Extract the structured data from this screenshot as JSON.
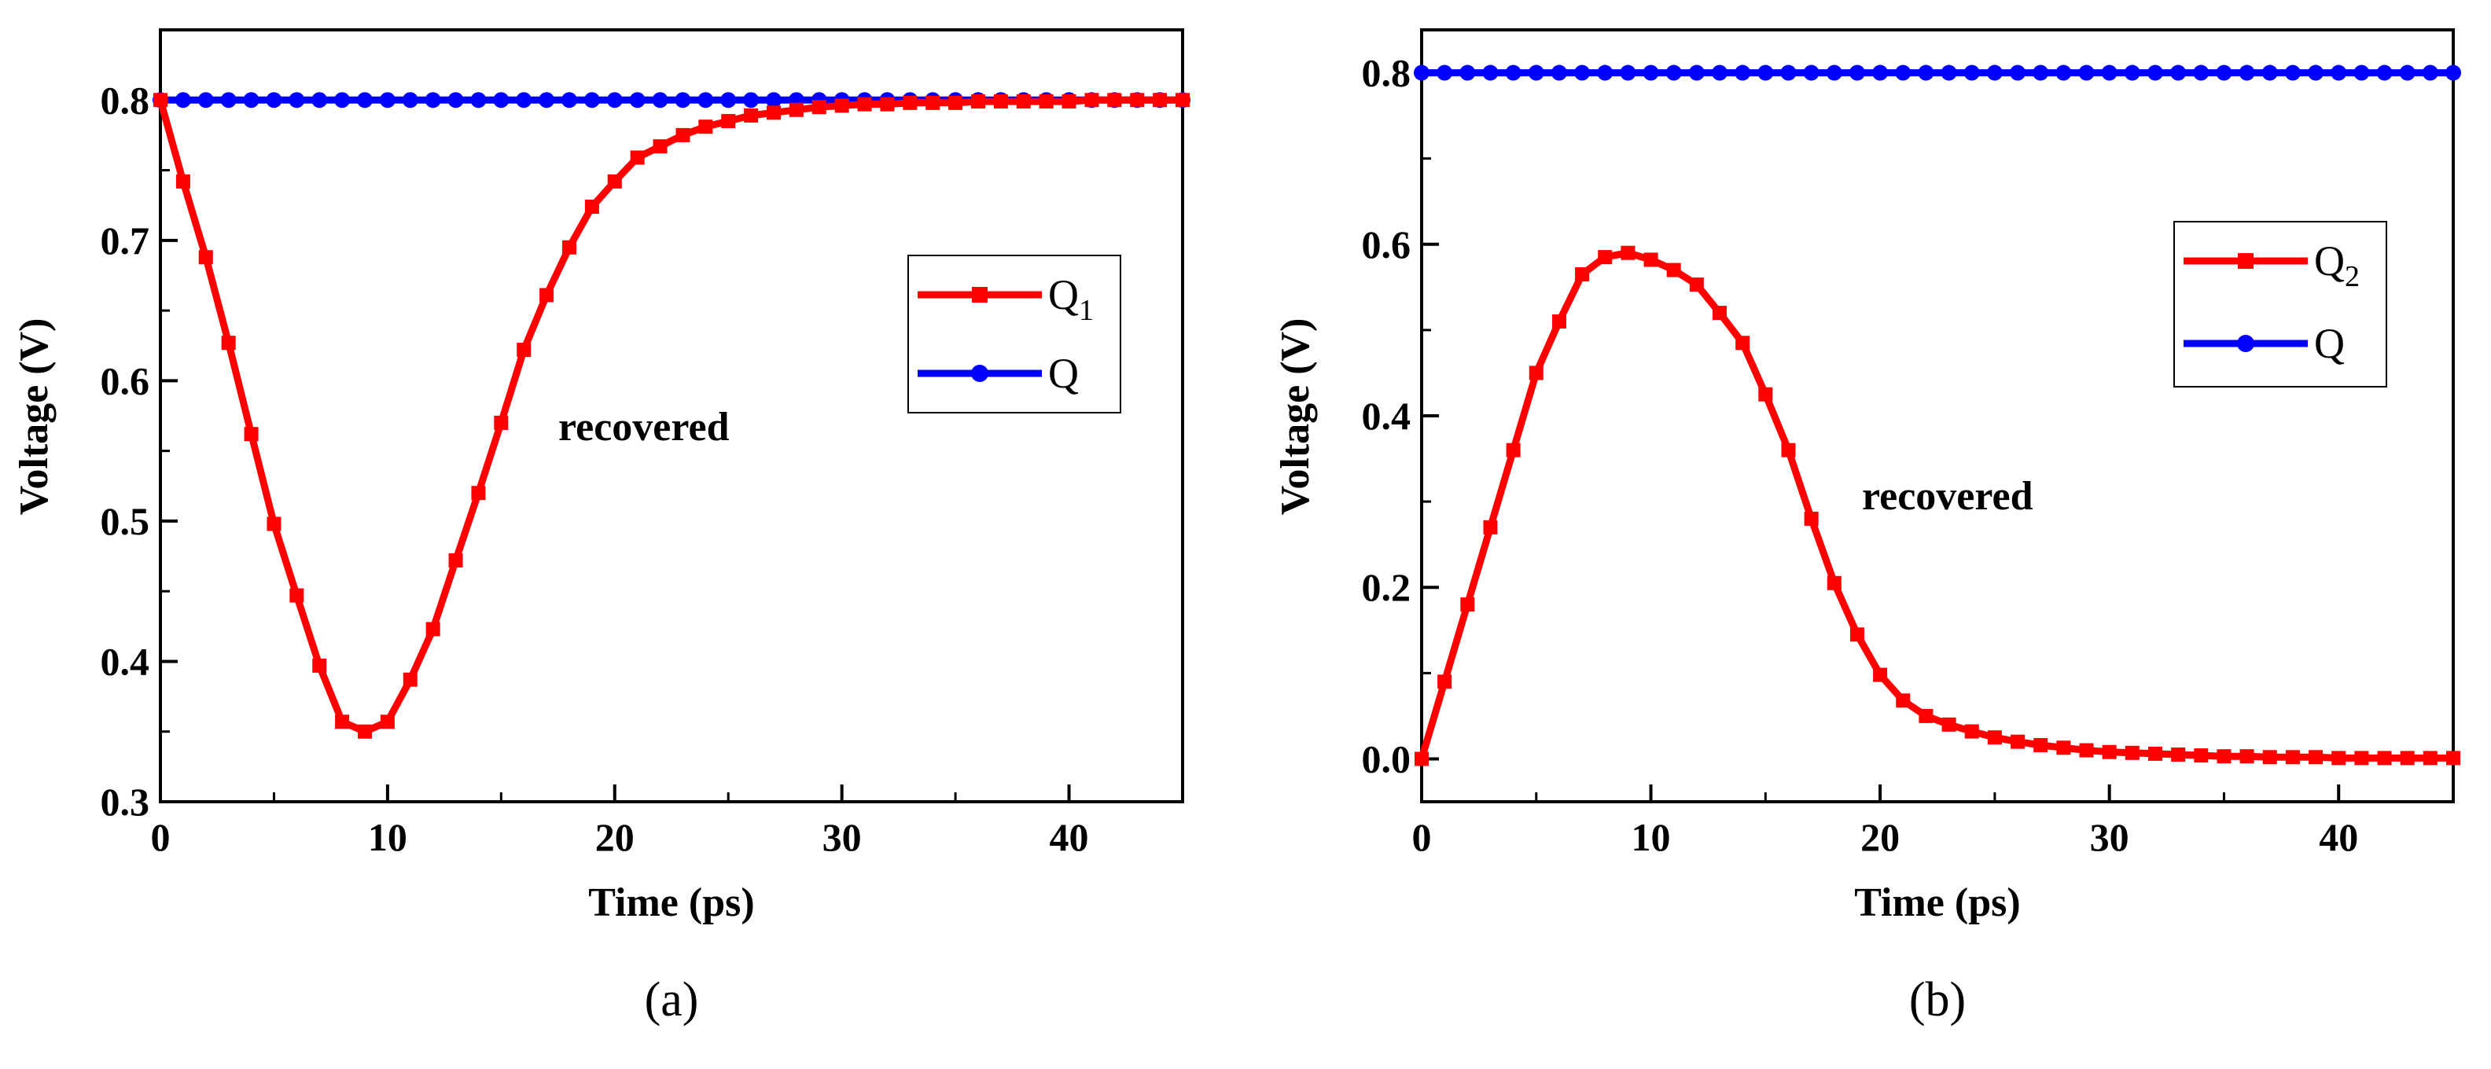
{
  "chart_data": [
    {
      "type": "line",
      "panel_label": "(a)",
      "xlabel": "Time (ps)",
      "ylabel": "Voltage (V)",
      "xlim": [
        0,
        45
      ],
      "ylim": [
        0.3,
        0.85
      ],
      "xticks": [
        0,
        10,
        20,
        30,
        40
      ],
      "yticks": [
        0.3,
        0.4,
        0.5,
        0.6,
        0.7,
        0.8
      ],
      "ytick_labels": [
        "0.3",
        "0.4",
        "0.5",
        "0.6",
        "0.7",
        "0.8"
      ],
      "annotation": "recovered",
      "legend_position": "right",
      "x": [
        0,
        1,
        2,
        3,
        4,
        5,
        6,
        7,
        8,
        9,
        10,
        11,
        12,
        13,
        14,
        15,
        16,
        17,
        18,
        19,
        20,
        21,
        22,
        23,
        24,
        25,
        26,
        27,
        28,
        29,
        30,
        31,
        32,
        33,
        34,
        35,
        36,
        37,
        38,
        39,
        40,
        41,
        42,
        43,
        44,
        45
      ],
      "series": [
        {
          "name": "Q1",
          "label_main": "Q",
          "label_sub": "1",
          "color": "#ff0000",
          "marker": "square",
          "values": [
            0.8,
            0.742,
            0.688,
            0.627,
            0.562,
            0.498,
            0.447,
            0.397,
            0.357,
            0.35,
            0.357,
            0.387,
            0.423,
            0.472,
            0.52,
            0.57,
            0.622,
            0.661,
            0.695,
            0.724,
            0.742,
            0.759,
            0.767,
            0.775,
            0.781,
            0.785,
            0.789,
            0.791,
            0.793,
            0.795,
            0.796,
            0.797,
            0.797,
            0.798,
            0.798,
            0.798,
            0.799,
            0.799,
            0.799,
            0.799,
            0.799,
            0.8,
            0.8,
            0.8,
            0.8,
            0.8
          ]
        },
        {
          "name": "Q",
          "label_main": "Q",
          "label_sub": "",
          "color": "#0000ff",
          "marker": "circle",
          "values": [
            0.8,
            0.8,
            0.8,
            0.8,
            0.8,
            0.8,
            0.8,
            0.8,
            0.8,
            0.8,
            0.8,
            0.8,
            0.8,
            0.8,
            0.8,
            0.8,
            0.8,
            0.8,
            0.8,
            0.8,
            0.8,
            0.8,
            0.8,
            0.8,
            0.8,
            0.8,
            0.8,
            0.8,
            0.8,
            0.8,
            0.8,
            0.8,
            0.8,
            0.8,
            0.8,
            0.8,
            0.8,
            0.8,
            0.8,
            0.8,
            0.8,
            0.8,
            0.8,
            0.8,
            0.8,
            0.8
          ]
        }
      ]
    },
    {
      "type": "line",
      "panel_label": "(b)",
      "xlabel": "Time (ps)",
      "ylabel": "Voltage (V)",
      "xlim": [
        0,
        45
      ],
      "ylim": [
        -0.05,
        0.85
      ],
      "xticks": [
        0,
        10,
        20,
        30,
        40
      ],
      "yticks": [
        0.0,
        0.2,
        0.4,
        0.6,
        0.8
      ],
      "ytick_labels": [
        "0.0",
        "0.2",
        "0.4",
        "0.6",
        "0.8"
      ],
      "annotation": "recovered",
      "legend_position": "top-right",
      "x": [
        0,
        1,
        2,
        3,
        4,
        5,
        6,
        7,
        8,
        9,
        10,
        11,
        12,
        13,
        14,
        15,
        16,
        17,
        18,
        19,
        20,
        21,
        22,
        23,
        24,
        25,
        26,
        27,
        28,
        29,
        30,
        31,
        32,
        33,
        34,
        35,
        36,
        37,
        38,
        39,
        40,
        41,
        42,
        43,
        44,
        45
      ],
      "series": [
        {
          "name": "Q2",
          "label_main": "Q",
          "label_sub": "2",
          "color": "#ff0000",
          "marker": "square",
          "values": [
            0.0,
            0.09,
            0.18,
            0.27,
            0.36,
            0.45,
            0.51,
            0.565,
            0.585,
            0.59,
            0.582,
            0.57,
            0.553,
            0.52,
            0.485,
            0.425,
            0.36,
            0.28,
            0.205,
            0.145,
            0.098,
            0.068,
            0.05,
            0.04,
            0.032,
            0.025,
            0.02,
            0.016,
            0.013,
            0.01,
            0.008,
            0.007,
            0.006,
            0.005,
            0.004,
            0.003,
            0.003,
            0.002,
            0.002,
            0.002,
            0.001,
            0.001,
            0.001,
            0.001,
            0.001,
            0.001
          ]
        },
        {
          "name": "Q",
          "label_main": "Q",
          "label_sub": "",
          "color": "#0000ff",
          "marker": "circle",
          "values": [
            0.8,
            0.8,
            0.8,
            0.8,
            0.8,
            0.8,
            0.8,
            0.8,
            0.8,
            0.8,
            0.8,
            0.8,
            0.8,
            0.8,
            0.8,
            0.8,
            0.8,
            0.8,
            0.8,
            0.8,
            0.8,
            0.8,
            0.8,
            0.8,
            0.8,
            0.8,
            0.8,
            0.8,
            0.8,
            0.8,
            0.8,
            0.8,
            0.8,
            0.8,
            0.8,
            0.8,
            0.8,
            0.8,
            0.8,
            0.8,
            0.8,
            0.8,
            0.8,
            0.8,
            0.8,
            0.8
          ]
        }
      ]
    }
  ]
}
